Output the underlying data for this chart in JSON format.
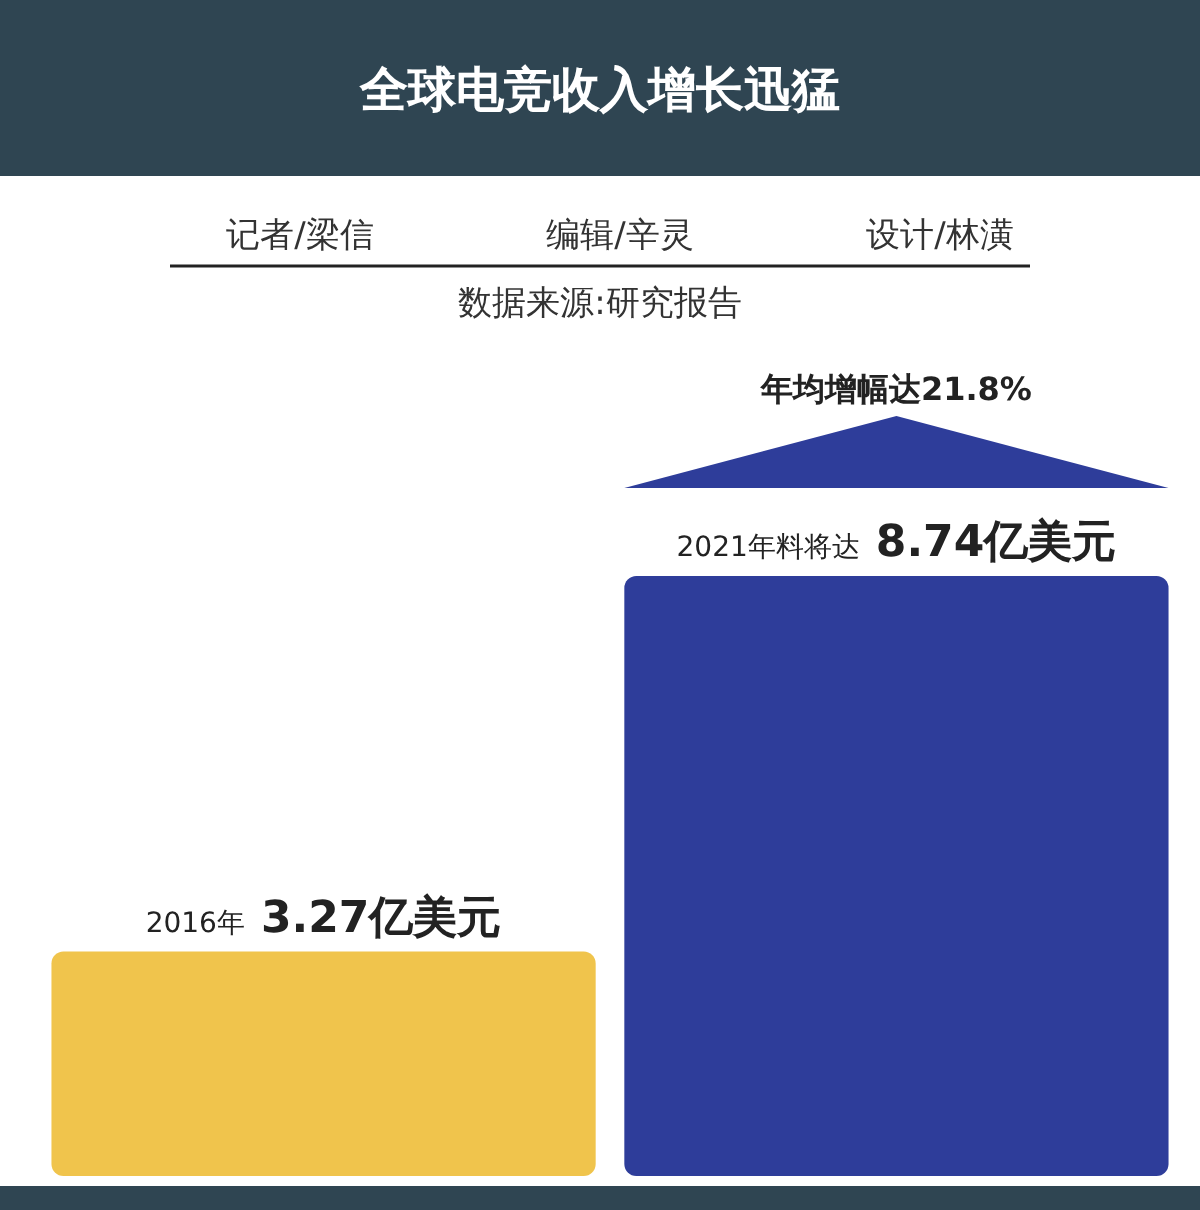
{
  "chart_data": {
    "type": "bar",
    "title": "全球电竞收入增长迅猛",
    "subtitle": "记者/梁信 编辑/辛灵 设计/林潢",
    "annotations": [
      "数据来源:研究报告",
      "年均增幅达21.8%"
    ],
    "categories": [
      "2016年",
      "2021年料将达"
    ],
    "values": [
      3.27,
      8.74
    ],
    "colors": [
      "#f0c44c",
      "#2e3d9a"
    ],
    "value_labels": [
      "3.27亿美元",
      "8.74亿美元"
    ]
  }
}
